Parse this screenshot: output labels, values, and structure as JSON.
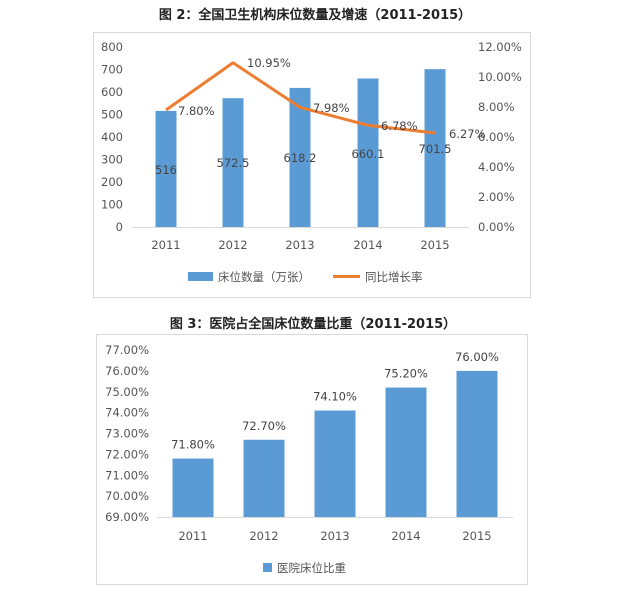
{
  "colors": {
    "bar": "#5B9BD5",
    "line": "#ED7D31",
    "border": "#D9D9D9",
    "axis": "#D9D9D9"
  },
  "chart_data": [
    {
      "type": "bar+line",
      "title": "图 2：全国卫生机构床位数量及增速（2011-2015）",
      "categories": [
        "2011",
        "2012",
        "2013",
        "2014",
        "2015"
      ],
      "series": [
        {
          "name": "床位数量（万张）",
          "type": "bar",
          "axis": "left",
          "values": [
            516,
            572.5,
            618.2,
            660.1,
            701.5
          ],
          "labels": [
            "516",
            "572.5",
            "618.2",
            "660.1",
            "701.5"
          ]
        },
        {
          "name": "同比增长率",
          "type": "line",
          "axis": "right",
          "values": [
            7.8,
            10.95,
            7.98,
            6.78,
            6.27
          ],
          "labels": [
            "7.80%",
            "10.95%",
            "7.98%",
            "6.78%",
            "6.27%"
          ]
        }
      ],
      "ylim": [
        0,
        800
      ],
      "yticks": [
        "0",
        "100",
        "200",
        "300",
        "400",
        "500",
        "600",
        "700",
        "800"
      ],
      "y2lim": [
        0,
        12
      ],
      "y2ticks": [
        "0.00%",
        "2.00%",
        "4.00%",
        "6.00%",
        "8.00%",
        "10.00%",
        "12.00%"
      ],
      "grid": false,
      "legend": "bottom"
    },
    {
      "type": "bar",
      "title": "图 3：医院占全国床位数量比重（2011-2015）",
      "categories": [
        "2011",
        "2012",
        "2013",
        "2014",
        "2015"
      ],
      "series": [
        {
          "name": "医院床位比重",
          "values": [
            71.8,
            72.7,
            74.1,
            75.2,
            76.0
          ],
          "labels": [
            "71.80%",
            "72.70%",
            "74.10%",
            "75.20%",
            "76.00%"
          ]
        }
      ],
      "ylim": [
        69,
        77
      ],
      "yticks": [
        "69.00%",
        "70.00%",
        "71.00%",
        "72.00%",
        "73.00%",
        "74.00%",
        "75.00%",
        "76.00%",
        "77.00%"
      ],
      "grid": false,
      "legend": "bottom"
    }
  ]
}
